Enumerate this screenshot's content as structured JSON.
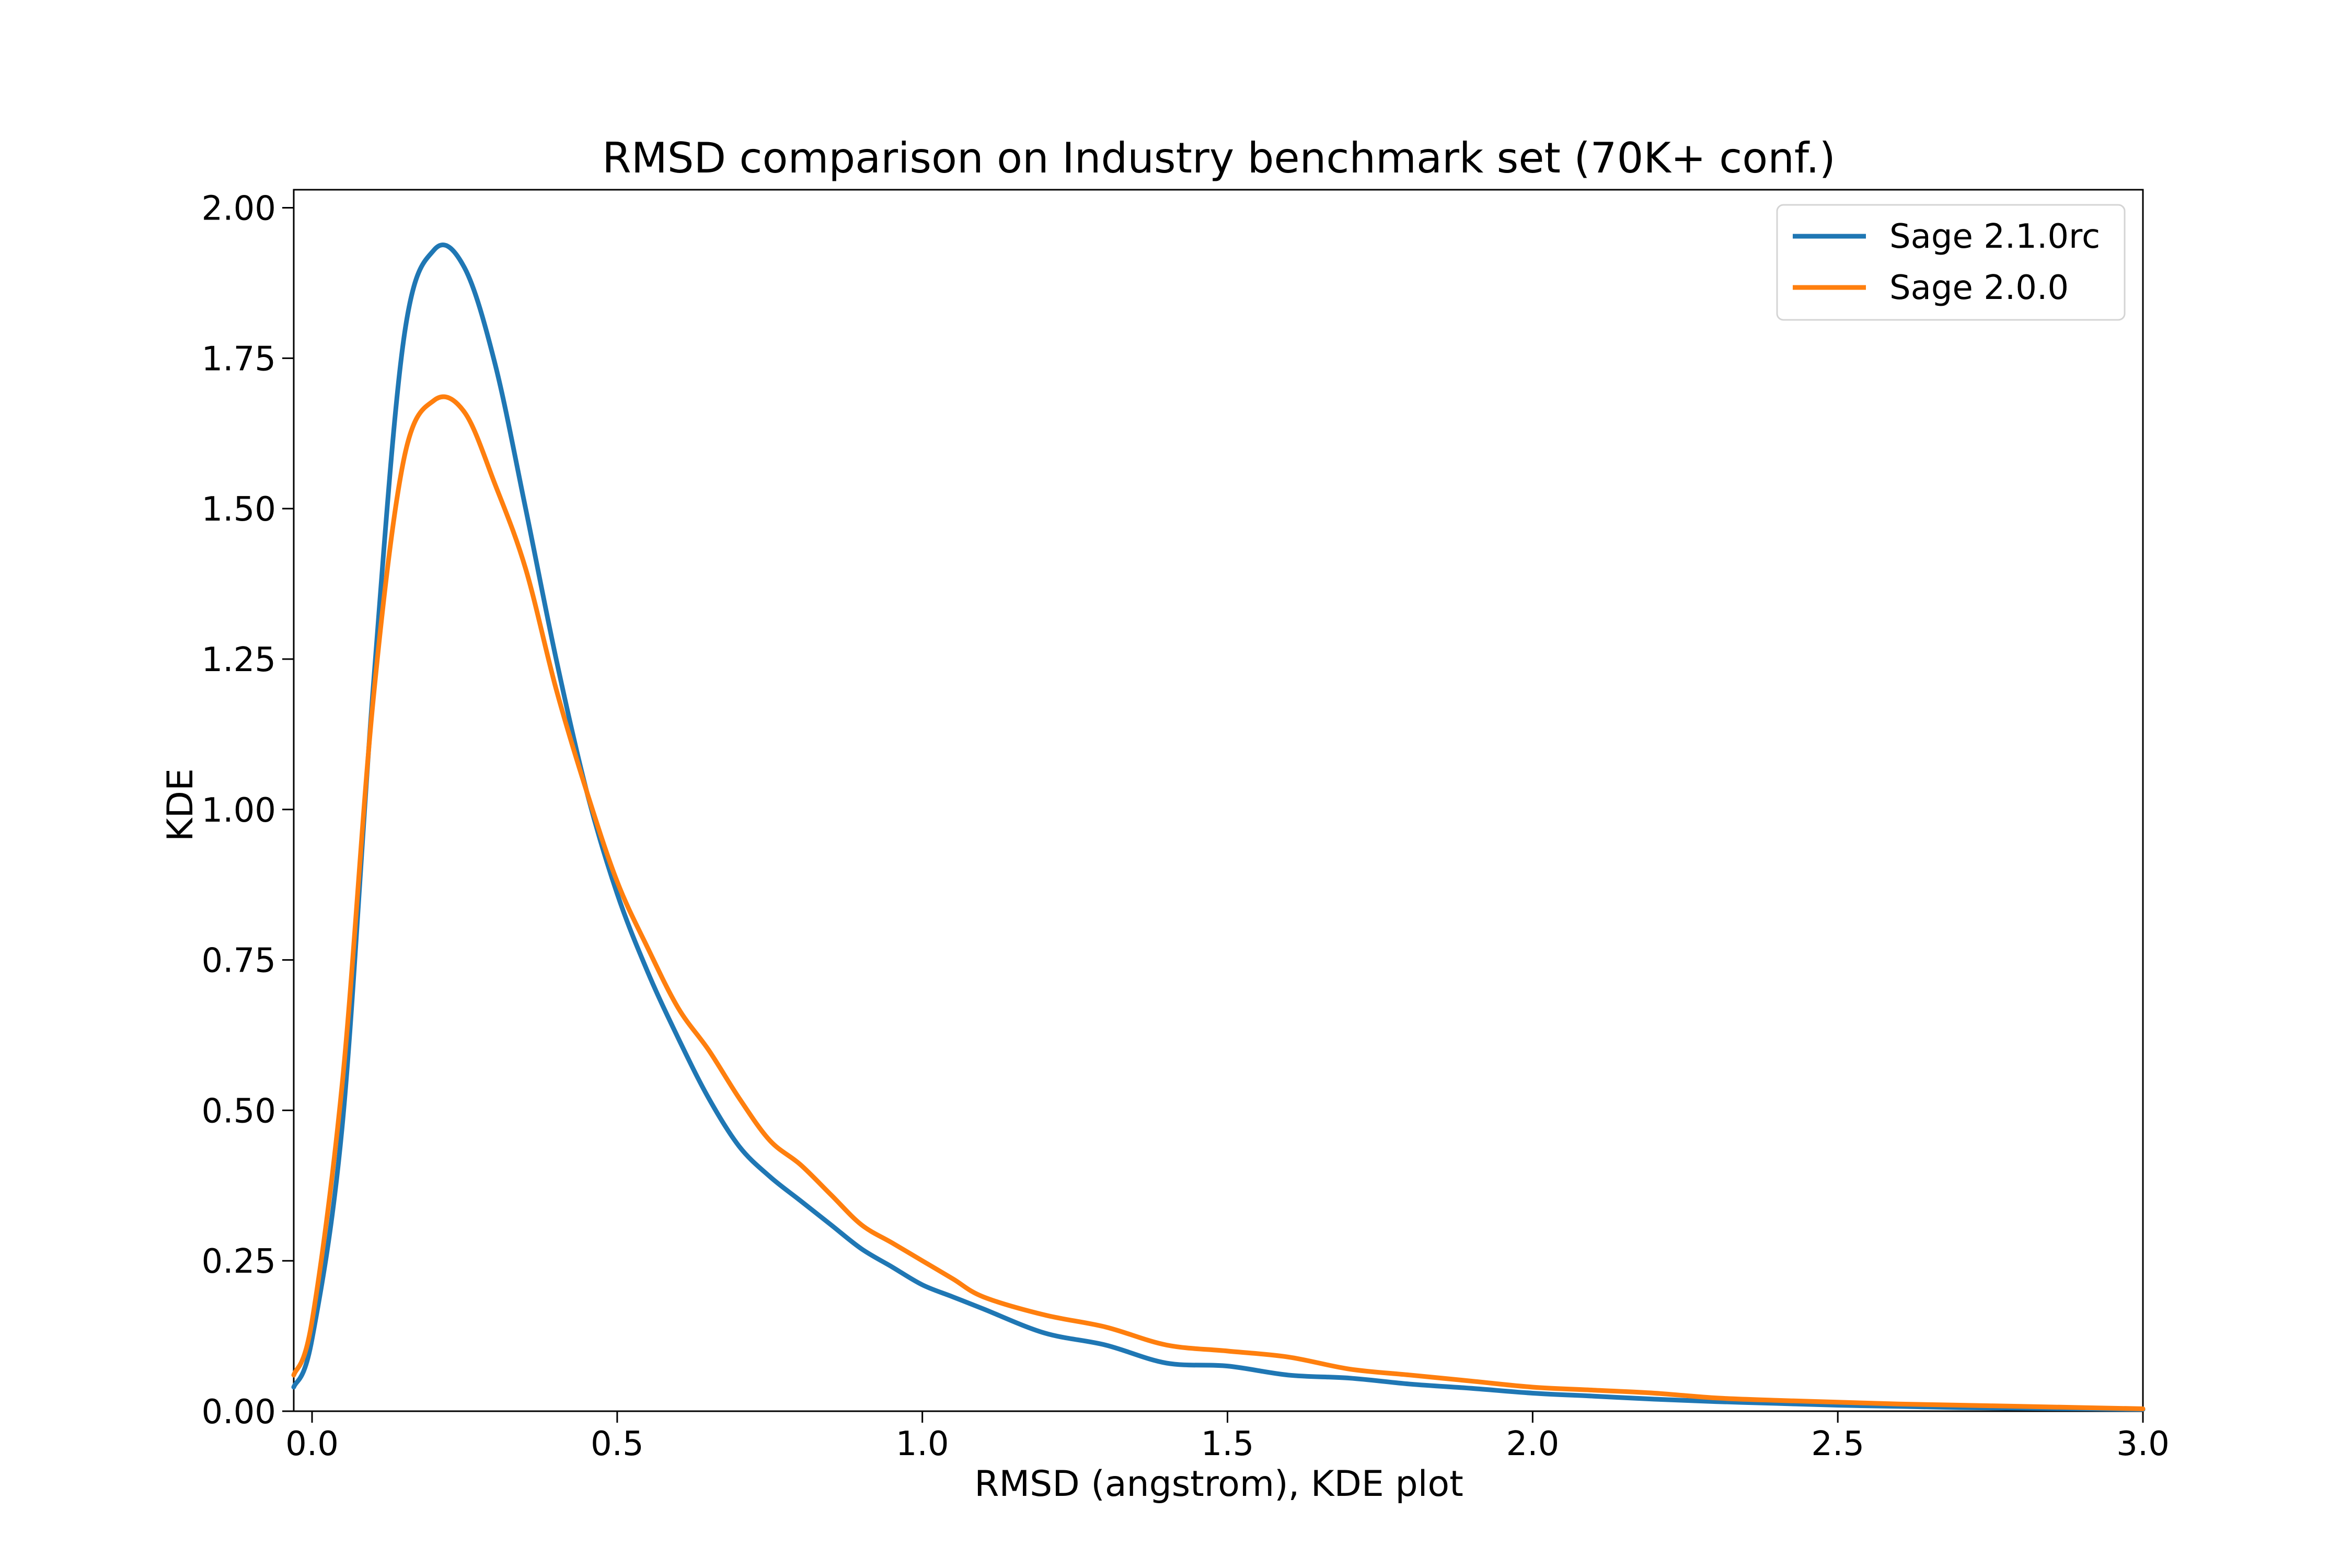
{
  "chart_data": {
    "type": "line",
    "title": "RMSD comparison on Industry benchmark set (70K+ conf.)",
    "xlabel": "RMSD (angstrom), KDE plot",
    "ylabel": "KDE",
    "xlim": [
      -0.03,
      3.0
    ],
    "ylim": [
      0,
      2.03
    ],
    "x_ticks": [
      0.0,
      0.5,
      1.0,
      1.5,
      2.0,
      2.5,
      3.0
    ],
    "x_tick_labels": [
      "0.0",
      "0.5",
      "1.0",
      "1.5",
      "2.0",
      "2.5",
      "3.0"
    ],
    "y_ticks": [
      0.0,
      0.25,
      0.5,
      0.75,
      1.0,
      1.25,
      1.5,
      1.75,
      2.0
    ],
    "y_tick_labels": [
      "0.00",
      "0.25",
      "0.50",
      "0.75",
      "1.00",
      "1.25",
      "1.50",
      "1.75",
      "2.00"
    ],
    "grid": false,
    "legend_position": "top-right",
    "x": [
      -0.03,
      0.0,
      0.05,
      0.1,
      0.15,
      0.2,
      0.25,
      0.3,
      0.35,
      0.4,
      0.45,
      0.5,
      0.55,
      0.6,
      0.65,
      0.7,
      0.75,
      0.8,
      0.85,
      0.9,
      0.95,
      1.0,
      1.05,
      1.1,
      1.2,
      1.3,
      1.4,
      1.5,
      1.6,
      1.7,
      1.8,
      1.9,
      2.0,
      2.1,
      2.2,
      2.3,
      2.4,
      2.5,
      2.6,
      2.7,
      2.8,
      2.9,
      3.0
    ],
    "series": [
      {
        "name": "Sage 2.1.0rc",
        "color": "#1f77b4",
        "values": [
          0.04,
          0.12,
          0.48,
          1.2,
          1.78,
          1.93,
          1.9,
          1.74,
          1.5,
          1.25,
          1.03,
          0.86,
          0.73,
          0.62,
          0.52,
          0.44,
          0.39,
          0.35,
          0.31,
          0.27,
          0.24,
          0.21,
          0.19,
          0.17,
          0.13,
          0.11,
          0.08,
          0.075,
          0.06,
          0.055,
          0.045,
          0.038,
          0.03,
          0.025,
          0.02,
          0.016,
          0.013,
          0.01,
          0.008,
          0.006,
          0.005,
          0.004,
          0.003
        ]
      },
      {
        "name": "Sage 2.0.0",
        "color": "#ff7f0e",
        "values": [
          0.06,
          0.15,
          0.55,
          1.18,
          1.58,
          1.68,
          1.66,
          1.54,
          1.4,
          1.2,
          1.03,
          0.88,
          0.77,
          0.67,
          0.6,
          0.52,
          0.45,
          0.41,
          0.36,
          0.31,
          0.28,
          0.25,
          0.22,
          0.19,
          0.16,
          0.14,
          0.11,
          0.1,
          0.09,
          0.07,
          0.06,
          0.05,
          0.04,
          0.035,
          0.03,
          0.022,
          0.018,
          0.015,
          0.012,
          0.01,
          0.008,
          0.006,
          0.004
        ]
      }
    ]
  }
}
